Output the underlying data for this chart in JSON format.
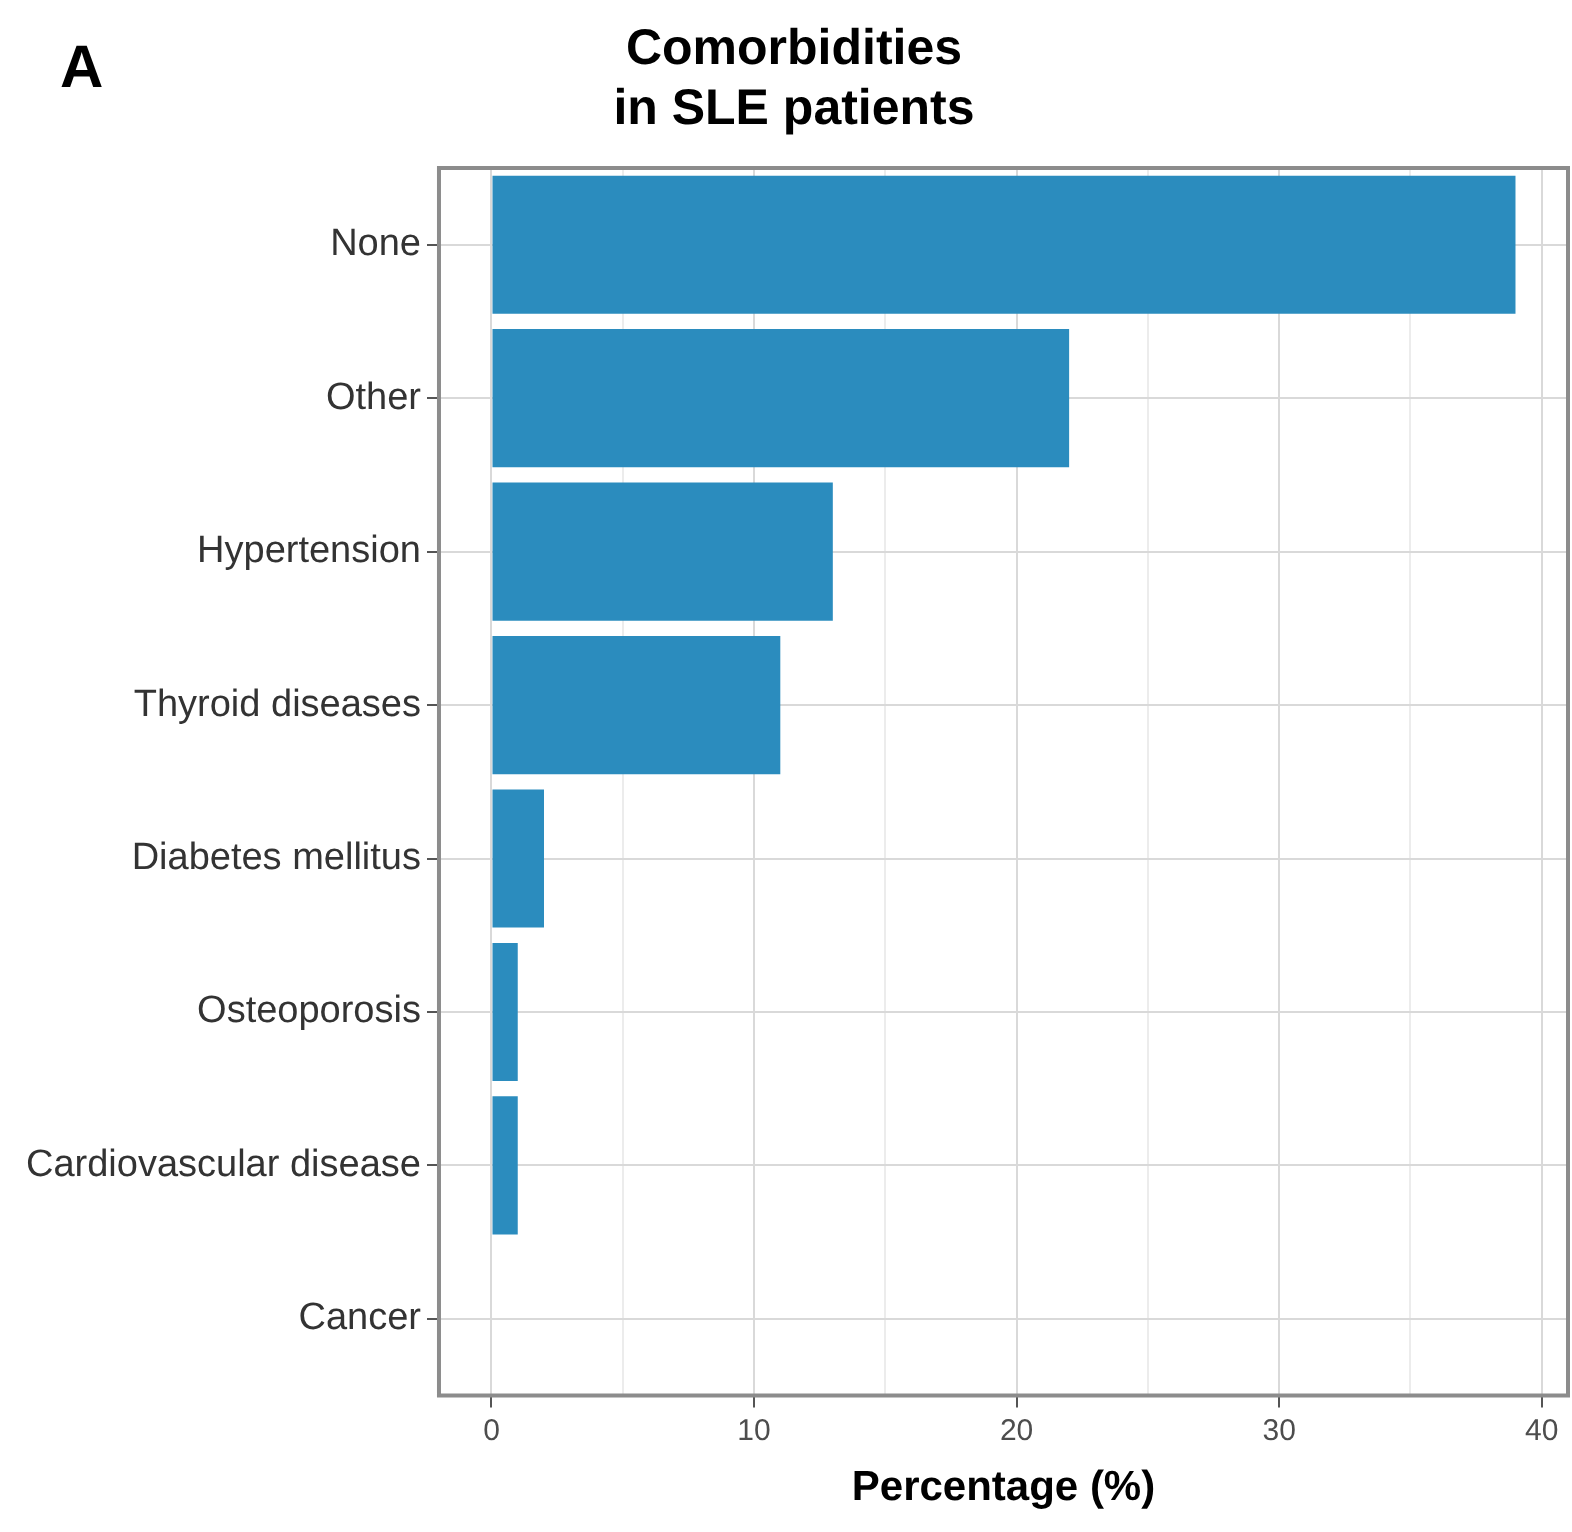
{
  "chart_data": {
    "type": "bar",
    "orientation": "horizontal",
    "title": "Comorbidities\nin SLE patients",
    "xlabel": "Percentage (%)",
    "annotations": [
      "A"
    ],
    "categories": [
      "None",
      "Other",
      "Hypertension",
      "Thyroid diseases",
      "Diabetes mellitus",
      "Osteoporosis",
      "Cardiovascular disease",
      "Cancer"
    ],
    "values": [
      39,
      22,
      13,
      11,
      2,
      1,
      1,
      0
    ],
    "color": "#2b8cbe",
    "xlim": [
      -2,
      41
    ],
    "xticks": [
      0,
      {
        "value": 5,
        "label": null
      },
      10,
      {
        "value": 15,
        "label": null
      },
      20,
      {
        "value": 25,
        "label": null
      },
      30,
      {
        "value": 35,
        "label": null
      },
      40
    ],
    "grid": true,
    "legend": false
  }
}
